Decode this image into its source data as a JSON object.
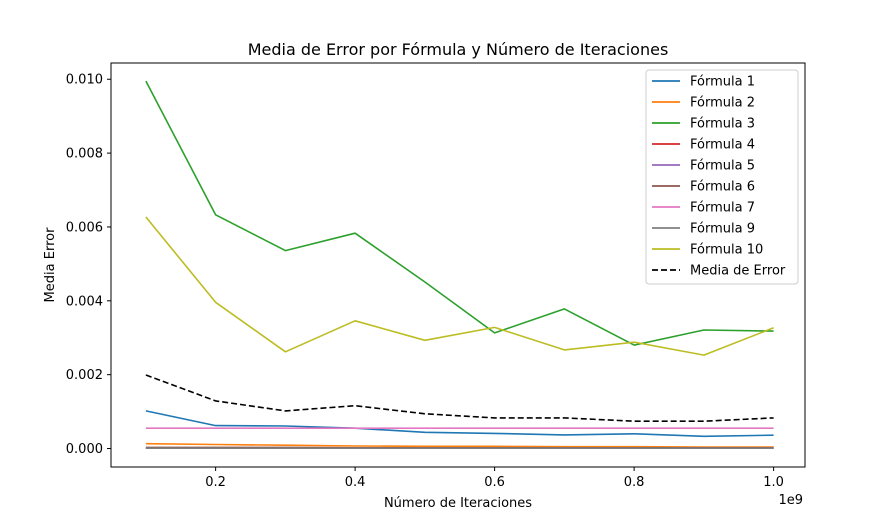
{
  "chart_data": {
    "type": "line",
    "title": "Media de Error por Fórmula y Número de Iteraciones",
    "xlabel": "Número de Iteraciones",
    "ylabel": "Media Error",
    "x_offset_label": "1e9",
    "x": [
      0.1,
      0.2,
      0.3,
      0.4,
      0.5,
      0.6,
      0.7,
      0.8,
      0.9,
      1.0
    ],
    "xlim": [
      0.05,
      1.045
    ],
    "ylim": [
      -0.0005,
      0.01044
    ],
    "xticks": [
      0.2,
      0.4,
      0.6,
      0.8,
      1.0
    ],
    "xtick_labels": [
      "0.2",
      "0.4",
      "0.6",
      "0.8",
      "1.0"
    ],
    "yticks": [
      0.0,
      0.002,
      0.004,
      0.006,
      0.008,
      0.01
    ],
    "ytick_labels": [
      "0.000",
      "0.002",
      "0.004",
      "0.006",
      "0.008",
      "0.010"
    ],
    "grid": false,
    "legend_position": "top-right",
    "series": [
      {
        "name": "Fórmula 1",
        "color": "#1f77b4",
        "dash": "solid",
        "values": [
          0.00102,
          0.00062,
          0.00061,
          0.00055,
          0.00044,
          0.00041,
          0.00037,
          0.0004,
          0.00033,
          0.00036
        ]
      },
      {
        "name": "Fórmula 2",
        "color": "#ff7f0e",
        "dash": "solid",
        "values": [
          0.00013,
          0.00011,
          9e-05,
          7e-05,
          6e-05,
          6e-05,
          5e-05,
          5e-05,
          4e-05,
          4e-05
        ]
      },
      {
        "name": "Fórmula 3",
        "color": "#2ca02c",
        "dash": "solid",
        "values": [
          0.00995,
          0.00633,
          0.00536,
          0.00583,
          0.00451,
          0.00313,
          0.00378,
          0.0028,
          0.00321,
          0.00318
        ]
      },
      {
        "name": "Fórmula 4",
        "color": "#d62728",
        "dash": "solid",
        "values": [
          1e-05,
          1e-05,
          1e-05,
          1e-05,
          1e-05,
          1e-05,
          1e-05,
          1e-05,
          1e-05,
          1e-05
        ]
      },
      {
        "name": "Fórmula 5",
        "color": "#9467bd",
        "dash": "solid",
        "values": [
          2e-05,
          2e-05,
          2e-05,
          2e-05,
          2e-05,
          2e-05,
          2e-05,
          2e-05,
          2e-05,
          2e-05
        ]
      },
      {
        "name": "Fórmula 6",
        "color": "#8c564b",
        "dash": "solid",
        "values": [
          3e-05,
          3e-05,
          3e-05,
          2e-05,
          2e-05,
          2e-05,
          2e-05,
          2e-05,
          2e-05,
          2e-05
        ]
      },
      {
        "name": "Fórmula 7",
        "color": "#e377c2",
        "dash": "solid",
        "values": [
          0.00055,
          0.00055,
          0.00055,
          0.00055,
          0.00055,
          0.00055,
          0.00055,
          0.00055,
          0.00055,
          0.00055
        ]
      },
      {
        "name": "Fórmula 9",
        "color": "#7f7f7f",
        "dash": "solid",
        "values": [
          1e-05,
          1e-05,
          1e-05,
          1e-05,
          1e-05,
          1e-05,
          1e-05,
          1e-05,
          1e-05,
          1e-05
        ]
      },
      {
        "name": "Fórmula 10",
        "color": "#bcbd22",
        "dash": "solid",
        "values": [
          0.00627,
          0.00396,
          0.00262,
          0.00346,
          0.00293,
          0.00328,
          0.00267,
          0.00288,
          0.00253,
          0.00327
        ]
      },
      {
        "name": "Media de Error",
        "color": "#000000",
        "dash": "dashed",
        "values": [
          0.00199,
          0.00129,
          0.00102,
          0.00116,
          0.00094,
          0.00083,
          0.00083,
          0.00074,
          0.00074,
          0.00083
        ]
      }
    ]
  }
}
